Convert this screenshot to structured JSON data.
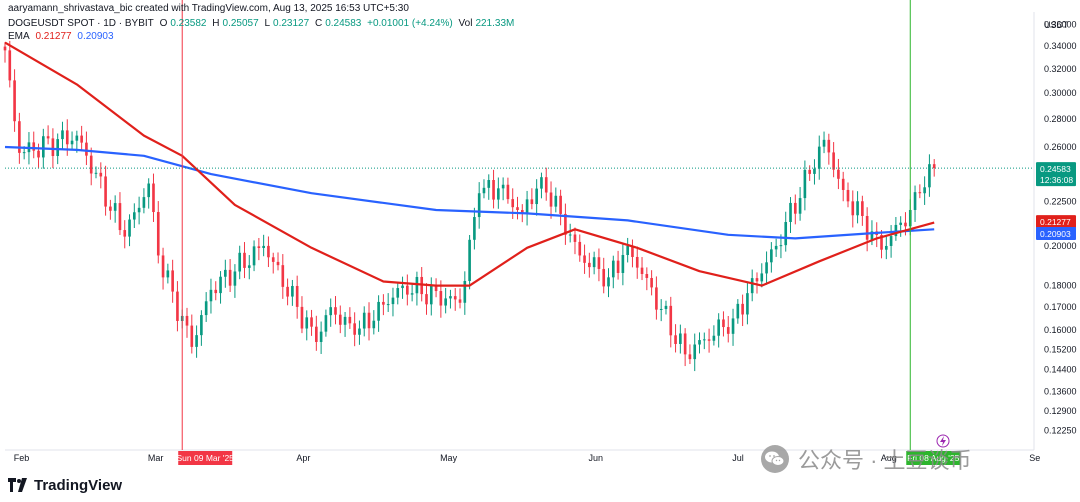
{
  "header": {
    "credit": "aaryamann_shrivastava_bic created with TradingView.com, Aug 13, 2025 16:53 UTC+5:30",
    "symbol": "DOGEUSDT SPOT · 1D · BYBIT",
    "o_label": "O",
    "o_value": "0.23582",
    "h_label": "H",
    "h_value": "0.25057",
    "l_label": "L",
    "l_value": "0.23127",
    "c_label": "C",
    "c_value": "0.24583",
    "change": "+0.01001 (+4.24%)",
    "vol_label": "Vol",
    "vol_value": "221.33M",
    "ema_label": "EMA",
    "ema_fast": "0.21277",
    "ema_slow": "0.20903"
  },
  "footer": {
    "brand": "TradingView"
  },
  "watermark": {
    "text": "公众号 · 土豆谈币"
  },
  "colors": {
    "up": "#089981",
    "down": "#f23645",
    "ema_fast": "#e0201b",
    "ema_slow": "#2962ff",
    "vline_red": "#f23645",
    "vline_green": "#2db52d",
    "price_tag": "#089981",
    "grid_text": "#131722"
  },
  "chart_data": {
    "type": "candlestick",
    "currency": "USDT",
    "y_scale": "log",
    "ylim": [
      0.117,
      0.372
    ],
    "y_ticks": [
      "0.36000",
      "0.34000",
      "0.32000",
      "0.30000",
      "0.28000",
      "0.26000",
      "0.22500",
      "0.20000",
      "0.18000",
      "0.17000",
      "0.16000",
      "0.15200",
      "0.14400",
      "0.13600",
      "0.12900",
      "0.12250"
    ],
    "x_ticks": [
      "Feb",
      "Mar",
      "Apr",
      "May",
      "Jun",
      "Jul",
      "Aug",
      "Se"
    ],
    "x_range": [
      "2025-01-31",
      "2025-09-02"
    ],
    "last_price": "0.24583",
    "countdown": "12:36:08",
    "ema_fast_value": "0.21277",
    "ema_slow_value": "0.20903",
    "markers": [
      {
        "date": "2025-03-09",
        "label": "Sun 09 Mar '25",
        "color": "red"
      },
      {
        "date": "2025-08-08",
        "label": "Fri 08 Aug '25",
        "color": "green"
      }
    ],
    "key_points": [
      {
        "date": "2025-01-31",
        "close": 0.336
      },
      {
        "date": "2025-02-03",
        "close": 0.256
      },
      {
        "date": "2025-02-15",
        "close": 0.268
      },
      {
        "date": "2025-02-25",
        "close": 0.205
      },
      {
        "date": "2025-03-02",
        "close": 0.236
      },
      {
        "date": "2025-03-04",
        "close": 0.195
      },
      {
        "date": "2025-03-11",
        "close": 0.153
      },
      {
        "date": "2025-03-15",
        "close": 0.178
      },
      {
        "date": "2025-03-26",
        "close": 0.2
      },
      {
        "date": "2025-04-06",
        "close": 0.155
      },
      {
        "date": "2025-04-09",
        "close": 0.17
      },
      {
        "date": "2025-04-14",
        "close": 0.158
      },
      {
        "date": "2025-04-24",
        "close": 0.18
      },
      {
        "date": "2025-05-06",
        "close": 0.172
      },
      {
        "date": "2025-05-10",
        "close": 0.23
      },
      {
        "date": "2025-05-14",
        "close": 0.233
      },
      {
        "date": "2025-05-19",
        "close": 0.218
      },
      {
        "date": "2025-05-23",
        "close": 0.24
      },
      {
        "date": "2025-05-31",
        "close": 0.195
      },
      {
        "date": "2025-06-06",
        "close": 0.184
      },
      {
        "date": "2025-06-10",
        "close": 0.2
      },
      {
        "date": "2025-06-22",
        "close": 0.15
      },
      {
        "date": "2025-07-02",
        "close": 0.165
      },
      {
        "date": "2025-07-11",
        "close": 0.2
      },
      {
        "date": "2025-07-21",
        "close": 0.265
      },
      {
        "date": "2025-07-25",
        "close": 0.232
      },
      {
        "date": "2025-08-02",
        "close": 0.198
      },
      {
        "date": "2025-08-08",
        "close": 0.22
      },
      {
        "date": "2025-08-10",
        "close": 0.23
      },
      {
        "date": "2025-08-13",
        "close": 0.24583
      }
    ],
    "ema_fast": [
      {
        "date": "2025-01-31",
        "value": 0.343
      },
      {
        "date": "2025-02-15",
        "value": 0.307
      },
      {
        "date": "2025-03-01",
        "value": 0.268
      },
      {
        "date": "2025-03-09",
        "value": 0.254
      },
      {
        "date": "2025-03-20",
        "value": 0.223
      },
      {
        "date": "2025-04-05",
        "value": 0.199
      },
      {
        "date": "2025-04-20",
        "value": 0.182
      },
      {
        "date": "2025-05-01",
        "value": 0.18
      },
      {
        "date": "2025-05-08",
        "value": 0.18
      },
      {
        "date": "2025-05-20",
        "value": 0.199
      },
      {
        "date": "2025-05-30",
        "value": 0.209
      },
      {
        "date": "2025-06-12",
        "value": 0.199
      },
      {
        "date": "2025-06-25",
        "value": 0.187
      },
      {
        "date": "2025-07-08",
        "value": 0.18
      },
      {
        "date": "2025-07-20",
        "value": 0.192
      },
      {
        "date": "2025-08-01",
        "value": 0.204
      },
      {
        "date": "2025-08-13",
        "value": 0.21277
      }
    ],
    "ema_slow": [
      {
        "date": "2025-01-31",
        "value": 0.26
      },
      {
        "date": "2025-02-15",
        "value": 0.258
      },
      {
        "date": "2025-03-01",
        "value": 0.254
      },
      {
        "date": "2025-03-15",
        "value": 0.242
      },
      {
        "date": "2025-04-05",
        "value": 0.23
      },
      {
        "date": "2025-05-01",
        "value": 0.22
      },
      {
        "date": "2025-05-20",
        "value": 0.218
      },
      {
        "date": "2025-06-10",
        "value": 0.214
      },
      {
        "date": "2025-07-01",
        "value": 0.206
      },
      {
        "date": "2025-07-15",
        "value": 0.204
      },
      {
        "date": "2025-08-01",
        "value": 0.207
      },
      {
        "date": "2025-08-13",
        "value": 0.20903
      }
    ]
  }
}
